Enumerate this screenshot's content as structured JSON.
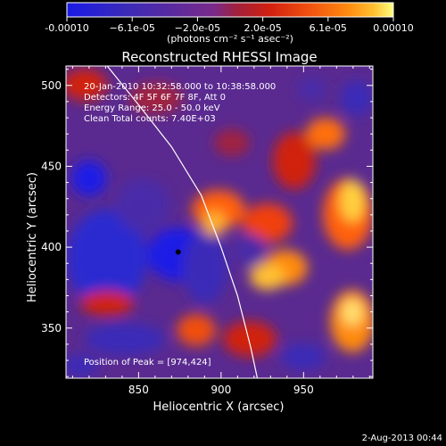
{
  "chart_data": {
    "type": "heatmap",
    "title": "Reconstructed RHESSI Image",
    "xlabel": "Heliocentric X (arcsec)",
    "ylabel": "Heliocentric Y (arcsec)",
    "xlim": [
      806,
      992
    ],
    "ylim": [
      319,
      512
    ],
    "x_ticks": [
      "850",
      "900",
      "950"
    ],
    "x_tick_values": [
      850,
      900,
      950
    ],
    "y_ticks": [
      "350",
      "400",
      "450",
      "500"
    ],
    "y_tick_values": [
      350,
      400,
      450,
      500
    ],
    "colorbar": {
      "ticks": [
        "-0.00010",
        "−6.1e-05",
        "−2.0e-05",
        "2.0e-05",
        "6.1e-05",
        "0.00010"
      ],
      "range": [
        -0.0001,
        0.0001
      ],
      "unit_line": "(photons cm⁻² s⁻¹ asec⁻²)",
      "colors": [
        "#1a1ae6",
        "#3a2ab8",
        "#5a2aa0",
        "#7a2a8a",
        "#a0203c",
        "#d02010",
        "#f05010",
        "#ff8a10",
        "#ffc030",
        "#ffff80"
      ]
    },
    "annotations": [
      "20-Jan-2010 10:32:58.000 to 10:38:58.000",
      "Detectors: 4F 5F 6F 7F 8F, Att 0",
      "Energy Range: 25.0 - 50.0 keV",
      "Clean     Total counts: 7.40E+03"
    ],
    "peak_label": "Position of Peak = [974,424]",
    "marker": {
      "x": 874,
      "y": 397
    },
    "limb_curve": [
      [
        831,
        512
      ],
      [
        850,
        488
      ],
      [
        870,
        462
      ],
      [
        888,
        432
      ],
      [
        900,
        400
      ],
      [
        910,
        370
      ],
      [
        918,
        338
      ],
      [
        922,
        319
      ]
    ]
  },
  "footer": {
    "date": "2-Aug-2013 00:44"
  }
}
